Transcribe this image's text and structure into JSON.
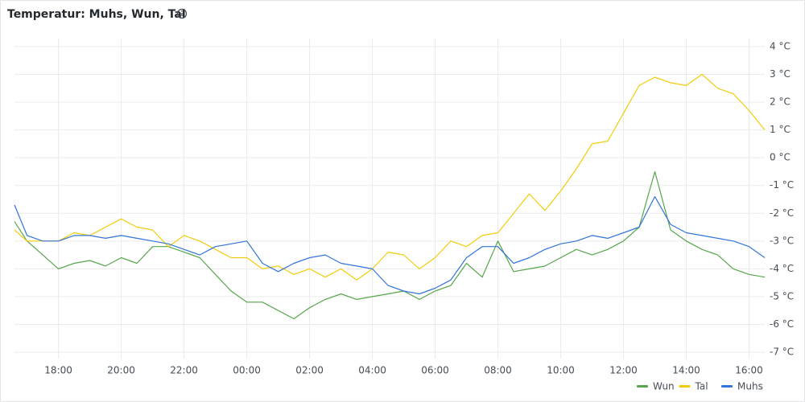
{
  "chart_data": {
    "type": "line",
    "title": "Temperatur: Muhs, Wun, Tal",
    "x": [
      16.6,
      17,
      17.5,
      18,
      18.5,
      19,
      19.5,
      20,
      20.5,
      21,
      21.5,
      22,
      22.5,
      23,
      23.5,
      24,
      24.5,
      25,
      25.5,
      26,
      26.5,
      27,
      27.5,
      28,
      28.5,
      29,
      29.5,
      30,
      30.5,
      31,
      31.5,
      32,
      32.5,
      33,
      33.5,
      34,
      34.5,
      35,
      35.5,
      36,
      36.5,
      37,
      37.5,
      38,
      38.5,
      39,
      39.5,
      40,
      40.5
    ],
    "series": [
      {
        "name": "Wun",
        "color": "#56a64b",
        "values": [
          -2.3,
          -3.0,
          -3.5,
          -4.0,
          -3.8,
          -3.7,
          -3.9,
          -3.6,
          -3.8,
          -3.2,
          -3.2,
          -3.4,
          -3.6,
          -4.2,
          -4.8,
          -5.2,
          -5.2,
          -5.5,
          -5.8,
          -5.4,
          -5.1,
          -4.9,
          -5.1,
          -5.0,
          -4.9,
          -4.8,
          -5.1,
          -4.8,
          -4.6,
          -3.8,
          -4.3,
          -3.0,
          -4.1,
          -4.0,
          -3.9,
          -3.6,
          -3.3,
          -3.5,
          -3.3,
          -3.0,
          -2.5,
          -0.5,
          -2.6,
          -3.0,
          -3.3,
          -3.5,
          -4.0,
          -4.2,
          -4.3
        ]
      },
      {
        "name": "Tal",
        "color": "#f2cc0c",
        "values": [
          -2.6,
          -3.0,
          -3.0,
          -3.0,
          -2.7,
          -2.8,
          -2.5,
          -2.2,
          -2.5,
          -2.6,
          -3.2,
          -2.8,
          -3.0,
          -3.3,
          -3.6,
          -3.6,
          -4.0,
          -3.9,
          -4.2,
          -4.0,
          -4.3,
          -4.0,
          -4.4,
          -4.0,
          -3.4,
          -3.5,
          -4.0,
          -3.6,
          -3.0,
          -3.2,
          -2.8,
          -2.7,
          -2.0,
          -1.3,
          -1.9,
          -1.2,
          -0.4,
          0.5,
          0.6,
          1.6,
          2.6,
          2.9,
          2.7,
          2.6,
          3.0,
          2.5,
          2.3,
          1.7,
          1.0
        ]
      },
      {
        "name": "Muhs",
        "color": "#3274d9",
        "values": [
          -1.7,
          -2.8,
          -3.0,
          -3.0,
          -2.8,
          -2.8,
          -2.9,
          -2.8,
          -2.9,
          -3.0,
          -3.1,
          -3.3,
          -3.5,
          -3.2,
          -3.1,
          -3.0,
          -3.8,
          -4.1,
          -3.8,
          -3.6,
          -3.5,
          -3.8,
          -3.9,
          -4.0,
          -4.6,
          -4.8,
          -4.9,
          -4.7,
          -4.4,
          -3.6,
          -3.2,
          -3.2,
          -3.8,
          -3.6,
          -3.3,
          -3.1,
          -3.0,
          -2.8,
          -2.9,
          -2.7,
          -2.5,
          -1.4,
          -2.4,
          -2.7,
          -2.8,
          -2.9,
          -3.0,
          -3.2,
          -3.6
        ]
      }
    ],
    "xlim": [
      16.6,
      40.5
    ],
    "xticks": [
      {
        "value": 18,
        "label": "18:00"
      },
      {
        "value": 20,
        "label": "20:00"
      },
      {
        "value": 22,
        "label": "22:00"
      },
      {
        "value": 24,
        "label": "00:00"
      },
      {
        "value": 26,
        "label": "02:00"
      },
      {
        "value": 28,
        "label": "04:00"
      },
      {
        "value": 30,
        "label": "06:00"
      },
      {
        "value": 32,
        "label": "08:00"
      },
      {
        "value": 34,
        "label": "10:00"
      },
      {
        "value": 36,
        "label": "12:00"
      },
      {
        "value": 38,
        "label": "14:00"
      },
      {
        "value": 40,
        "label": "16:00"
      }
    ],
    "ylim": [
      -7,
      4
    ],
    "yticks": [
      {
        "value": 4,
        "label": "4 °C"
      },
      {
        "value": 3,
        "label": "3 °C"
      },
      {
        "value": 2,
        "label": "2 °C"
      },
      {
        "value": 1,
        "label": "1 °C"
      },
      {
        "value": 0,
        "label": "0 °C"
      },
      {
        "value": -1,
        "label": "-1 °C"
      },
      {
        "value": -2,
        "label": "-2 °C"
      },
      {
        "value": -3,
        "label": "-3 °C"
      },
      {
        "value": -4,
        "label": "-4 °C"
      },
      {
        "value": -5,
        "label": "-5 °C"
      },
      {
        "value": -6,
        "label": "-6 °C"
      },
      {
        "value": -7,
        "label": "-7 °C"
      }
    ],
    "grid": true,
    "legend": "bottom-right"
  }
}
